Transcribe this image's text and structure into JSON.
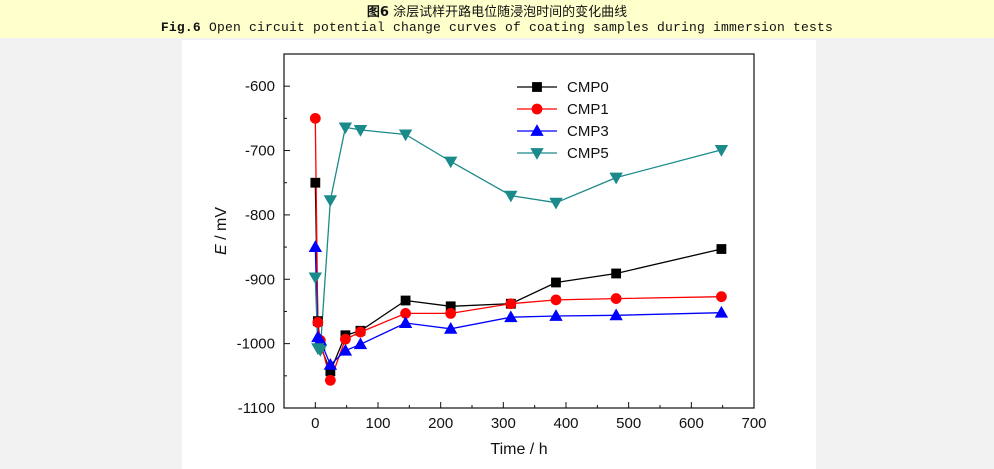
{
  "caption": {
    "cn_prefix": "图6",
    "cn_text": "涂层试样开路电位随浸泡时间的变化曲线",
    "en_prefix": "Fig.6",
    "en_text": "Open circuit potential change curves of coating samples during immersion tests"
  },
  "chart_data": {
    "type": "line",
    "xlabel": "Time / h",
    "ylabel_italic": "E",
    "ylabel_rest": " / mV",
    "xlim": [
      -50,
      700
    ],
    "ylim": [
      -1100,
      -550
    ],
    "xticks": [
      0,
      100,
      200,
      300,
      400,
      500,
      600,
      700
    ],
    "yticks": [
      -600,
      -700,
      -800,
      -900,
      -1000,
      -1100
    ],
    "legend_position": "top-right",
    "series": [
      {
        "name": "CMP0",
        "color": "#000000",
        "marker": "square",
        "x": [
          0,
          4,
          8,
          24,
          48,
          72,
          144,
          216,
          312,
          384,
          480,
          648
        ],
        "y": [
          -750,
          -965,
          -1003,
          -1043,
          -987,
          -980,
          -933,
          -942,
          -938,
          -905,
          -891,
          -853
        ]
      },
      {
        "name": "CMP1",
        "color": "#ff0000",
        "marker": "circle",
        "x": [
          0,
          4,
          8,
          24,
          48,
          72,
          144,
          216,
          312,
          384,
          480,
          648
        ],
        "y": [
          -650,
          -967,
          -995,
          -1057,
          -993,
          -982,
          -953,
          -953,
          -938,
          -932,
          -930,
          -927
        ]
      },
      {
        "name": "CMP3",
        "color": "#0000ff",
        "marker": "triangle-up",
        "x": [
          0,
          4,
          8,
          24,
          48,
          72,
          144,
          216,
          312,
          384,
          480,
          648
        ],
        "y": [
          -850,
          -990,
          -995,
          -1033,
          -1011,
          -1001,
          -968,
          -977,
          -959,
          -957,
          -956,
          -952
        ]
      },
      {
        "name": "CMP5",
        "color": "#1b8a8a",
        "marker": "triangle-down",
        "x": [
          0,
          4,
          8,
          24,
          48,
          72,
          144,
          216,
          312,
          384,
          480,
          648
        ],
        "y": [
          -897,
          -1007,
          -1010,
          -777,
          -664,
          -668,
          -675,
          -717,
          -770,
          -781,
          -742,
          -699
        ]
      }
    ]
  }
}
